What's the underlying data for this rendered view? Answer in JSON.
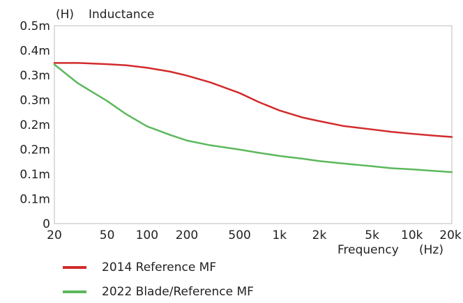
{
  "chart_data": {
    "type": "line",
    "unit_label": "(H)",
    "title": "Inductance",
    "xlabel": "Frequency",
    "xunit": "(Hz)",
    "xscale": "log",
    "xlim": [
      20,
      20000
    ],
    "ylim": [
      0,
      0.0005
    ],
    "grid": false,
    "x_ticks": [
      {
        "value": 20,
        "label": "20"
      },
      {
        "value": 50,
        "label": "50"
      },
      {
        "value": 100,
        "label": "100"
      },
      {
        "value": 200,
        "label": "200"
      },
      {
        "value": 500,
        "label": "500"
      },
      {
        "value": 1000,
        "label": "1k"
      },
      {
        "value": 2000,
        "label": "2k"
      },
      {
        "value": 5000,
        "label": "5k"
      },
      {
        "value": 10000,
        "label": "10k"
      },
      {
        "value": 20000,
        "label": "20k"
      }
    ],
    "y_ticks": [
      {
        "value": 0,
        "label": "0"
      },
      {
        "value": 6.25e-05,
        "label": "0.1m"
      },
      {
        "value": 0.000125,
        "label": "0.1m"
      },
      {
        "value": 0.0001875,
        "label": "0.2m"
      },
      {
        "value": 0.00025,
        "label": "0.2m"
      },
      {
        "value": 0.0003125,
        "label": "0.3m"
      },
      {
        "value": 0.000375,
        "label": "0.3m"
      },
      {
        "value": 0.0004375,
        "label": "0.4m"
      },
      {
        "value": 0.0005,
        "label": "0.5m"
      }
    ],
    "series": [
      {
        "name": "2014 Reference MF",
        "color": "#d22b2b",
        "points": [
          [
            20,
            0.000406
          ],
          [
            30,
            0.000406
          ],
          [
            50,
            0.000403
          ],
          [
            70,
            0.0004
          ],
          [
            100,
            0.000394
          ],
          [
            150,
            0.000384
          ],
          [
            200,
            0.000374
          ],
          [
            300,
            0.000357
          ],
          [
            500,
            0.00033
          ],
          [
            700,
            0.000307
          ],
          [
            1000,
            0.000286
          ],
          [
            1500,
            0.000268
          ],
          [
            2000,
            0.000259
          ],
          [
            3000,
            0.000247
          ],
          [
            5000,
            0.000238
          ],
          [
            7000,
            0.000232
          ],
          [
            10000,
            0.000227
          ],
          [
            15000,
            0.000222
          ],
          [
            20000,
            0.000219
          ]
        ]
      },
      {
        "name": "2022 Blade/Reference MF",
        "color": "#5cb85c",
        "points": [
          [
            20,
            0.000402
          ],
          [
            30,
            0.000355
          ],
          [
            50,
            0.00031
          ],
          [
            70,
            0.000276
          ],
          [
            100,
            0.000246
          ],
          [
            150,
            0.000224
          ],
          [
            200,
            0.00021
          ],
          [
            300,
            0.000198
          ],
          [
            500,
            0.000187
          ],
          [
            700,
            0.000179
          ],
          [
            1000,
            0.000171
          ],
          [
            1500,
            0.000164
          ],
          [
            2000,
            0.000158
          ],
          [
            3000,
            0.000152
          ],
          [
            5000,
            0.000145
          ],
          [
            7000,
            0.00014
          ],
          [
            10000,
            0.000137
          ],
          [
            15000,
            0.000133
          ],
          [
            20000,
            0.00013
          ]
        ]
      }
    ]
  }
}
